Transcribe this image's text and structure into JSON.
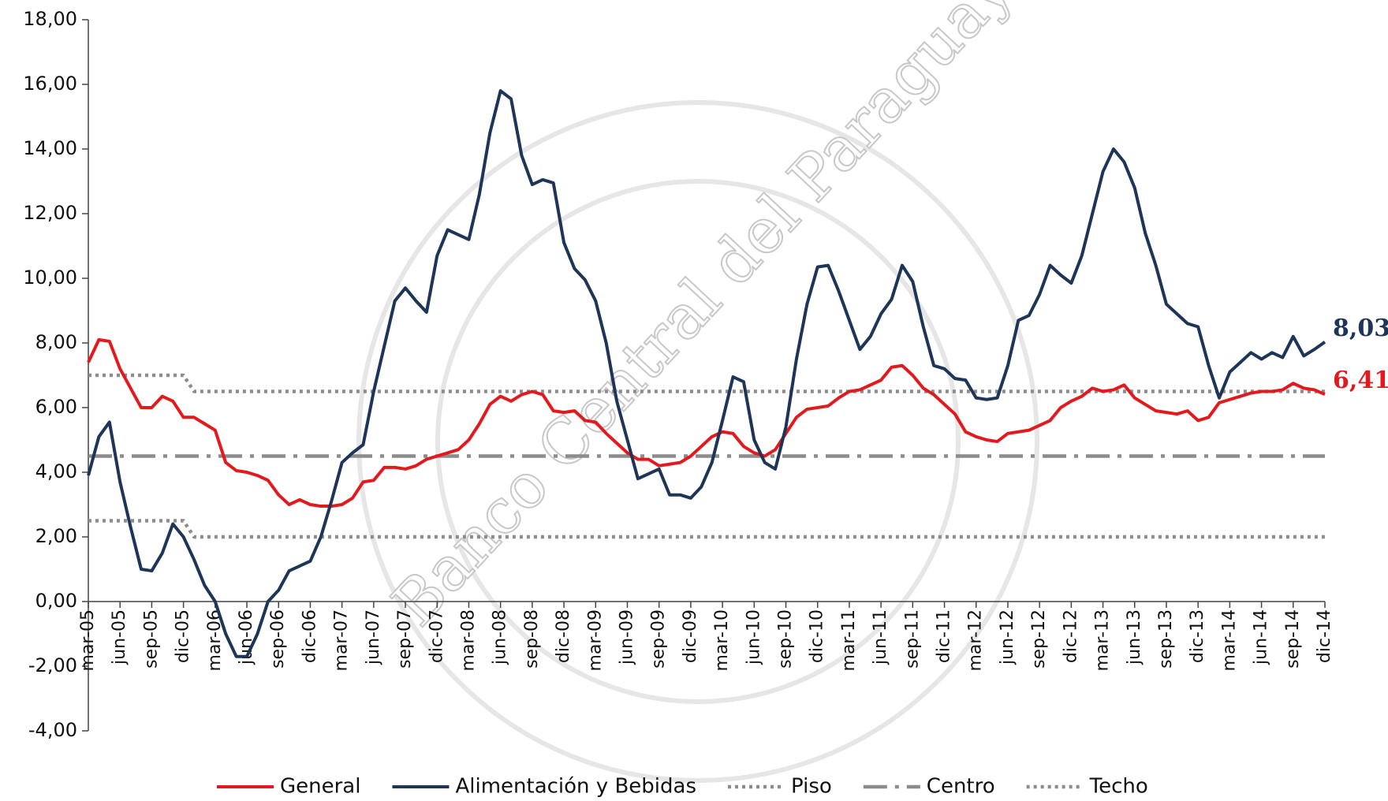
{
  "chart_data": {
    "type": "line",
    "watermark": "Banco Central del Paraguay",
    "categories": [
      "mar-05",
      null,
      null,
      "jun-05",
      null,
      null,
      "sep-05",
      null,
      null,
      "dic-05",
      null,
      null,
      "mar-06",
      null,
      null,
      "jun-06",
      null,
      null,
      "sep-06",
      null,
      null,
      "dic-06",
      null,
      null,
      "mar-07",
      null,
      null,
      "jun-07",
      null,
      null,
      "sep-07",
      null,
      null,
      "dic-07",
      null,
      null,
      "mar-08",
      null,
      null,
      "jun-08",
      null,
      null,
      "sep-08",
      null,
      null,
      "dic-08",
      null,
      null,
      "mar-09",
      null,
      null,
      "jun-09",
      null,
      null,
      "sep-09",
      null,
      null,
      "dic-09",
      null,
      null,
      "mar-10",
      null,
      null,
      "jun-10",
      null,
      null,
      "sep-10",
      null,
      null,
      "dic-10",
      null,
      null,
      "mar-11",
      null,
      null,
      "jun-11",
      null,
      null,
      "sep-11",
      null,
      null,
      "dic-11",
      null,
      null,
      "mar-12",
      null,
      null,
      "jun-12",
      null,
      null,
      "sep-12",
      null,
      null,
      "dic-12",
      null,
      null,
      "mar-13",
      null,
      null,
      "jun-13",
      null,
      null,
      "sep-13",
      null,
      null,
      "dic-13",
      null,
      null,
      "mar-14",
      null,
      null,
      "jun-14",
      null,
      null,
      "sep-14",
      null,
      null,
      "dic-14"
    ],
    "series": [
      {
        "name": "General",
        "color": "#e3191e",
        "style": "solid",
        "values": [
          7.4,
          8.1,
          8.05,
          7.2,
          6.6,
          6.0,
          6.0,
          6.35,
          6.2,
          5.7,
          5.7,
          5.5,
          5.3,
          4.3,
          4.05,
          4.0,
          3.9,
          3.75,
          3.3,
          3.0,
          3.15,
          3.0,
          2.95,
          2.95,
          3.0,
          3.2,
          3.7,
          3.75,
          4.15,
          4.15,
          4.1,
          4.2,
          4.4,
          4.5,
          4.6,
          4.7,
          5.0,
          5.5,
          6.1,
          6.35,
          6.2,
          6.4,
          6.5,
          6.4,
          5.9,
          5.85,
          5.9,
          5.6,
          5.55,
          5.2,
          4.9,
          4.6,
          4.4,
          4.4,
          4.2,
          4.25,
          4.3,
          4.5,
          4.8,
          5.1,
          5.25,
          5.2,
          4.8,
          4.6,
          4.5,
          4.7,
          5.2,
          5.7,
          5.95,
          6.0,
          6.05,
          6.3,
          6.5,
          6.55,
          6.7,
          6.85,
          7.25,
          7.3,
          7.0,
          6.6,
          6.4,
          6.1,
          5.8,
          5.25,
          5.1,
          5.0,
          4.95,
          5.2,
          5.25,
          5.3,
          5.45,
          5.6,
          6.0,
          6.2,
          6.35,
          6.6,
          6.5,
          6.55,
          6.7,
          6.3,
          6.1,
          5.9,
          5.85,
          5.8,
          5.9,
          5.6,
          5.7,
          6.15,
          6.25,
          6.35,
          6.45,
          6.5,
          6.5,
          6.55,
          6.75,
          6.6,
          6.55,
          6.41
        ],
        "value_labels": [
          null,
          null,
          null,
          null,
          null,
          null,
          null,
          null,
          null,
          null,
          null,
          null,
          null,
          null,
          null,
          null,
          null,
          null,
          null,
          null,
          null,
          null,
          null,
          null,
          null,
          null,
          null,
          null,
          null,
          null,
          null,
          null,
          null,
          null,
          null,
          null,
          null,
          null,
          null,
          null,
          null,
          null,
          null,
          null,
          null,
          null,
          null,
          null,
          null,
          null,
          null,
          null,
          null,
          null,
          null,
          null,
          null,
          null,
          null,
          null,
          null,
          null,
          null,
          null,
          null,
          null,
          null,
          null,
          null,
          null,
          null,
          null,
          null,
          null,
          null,
          null,
          null,
          null,
          null,
          null,
          null,
          null,
          null,
          null,
          null,
          null,
          null,
          null,
          null,
          null,
          null,
          null,
          null,
          null,
          null,
          null,
          null,
          null,
          null,
          null,
          null,
          null,
          null,
          null,
          null,
          null,
          null,
          null,
          null,
          null,
          null,
          null,
          null,
          null,
          null,
          null,
          null,
          "6,41"
        ]
      },
      {
        "name": "Alimentación y Bebidas",
        "color": "#1d3557",
        "style": "solid",
        "values": [
          3.9,
          5.1,
          5.55,
          3.7,
          2.3,
          1.0,
          0.95,
          1.5,
          2.4,
          2.0,
          1.3,
          0.5,
          0.0,
          -1.0,
          -1.7,
          -1.7,
          -1.0,
          0.0,
          0.35,
          0.95,
          1.1,
          1.25,
          2.0,
          3.1,
          4.3,
          4.6,
          4.85,
          6.5,
          7.9,
          9.3,
          9.7,
          9.3,
          8.95,
          10.7,
          11.5,
          11.35,
          11.2,
          12.6,
          14.5,
          15.8,
          15.55,
          13.8,
          12.9,
          13.05,
          12.95,
          11.1,
          10.3,
          9.95,
          9.3,
          8.0,
          6.2,
          5.0,
          3.8,
          3.95,
          4.1,
          3.3,
          3.3,
          3.2,
          3.55,
          4.3,
          5.6,
          6.95,
          6.8,
          5.0,
          4.3,
          4.1,
          5.4,
          7.5,
          9.2,
          10.35,
          10.4,
          9.6,
          8.7,
          7.8,
          8.2,
          8.9,
          9.35,
          10.4,
          9.9,
          8.5,
          7.3,
          7.2,
          6.9,
          6.85,
          6.3,
          6.25,
          6.3,
          7.3,
          8.7,
          8.85,
          9.5,
          10.4,
          10.1,
          9.85,
          10.7,
          12.0,
          13.3,
          14.0,
          13.6,
          12.8,
          11.4,
          10.4,
          9.2,
          8.9,
          8.6,
          8.5,
          7.3,
          6.3,
          7.1,
          7.4,
          7.7,
          7.5,
          7.7,
          7.55,
          8.2,
          7.6,
          7.8,
          8.03
        ],
        "value_labels": [
          null,
          null,
          null,
          null,
          null,
          null,
          null,
          null,
          null,
          null,
          null,
          null,
          null,
          null,
          null,
          null,
          null,
          null,
          null,
          null,
          null,
          null,
          null,
          null,
          null,
          null,
          null,
          null,
          null,
          null,
          null,
          null,
          null,
          null,
          null,
          null,
          null,
          null,
          null,
          null,
          null,
          null,
          null,
          null,
          null,
          null,
          null,
          null,
          null,
          null,
          null,
          null,
          null,
          null,
          null,
          null,
          null,
          null,
          null,
          null,
          null,
          null,
          null,
          null,
          null,
          null,
          null,
          null,
          null,
          null,
          null,
          null,
          null,
          null,
          null,
          null,
          null,
          null,
          null,
          null,
          null,
          null,
          null,
          null,
          null,
          null,
          null,
          null,
          null,
          null,
          null,
          null,
          null,
          null,
          null,
          null,
          null,
          null,
          null,
          null,
          null,
          null,
          null,
          null,
          null,
          null,
          null,
          null,
          null,
          null,
          null,
          null,
          null,
          null,
          null,
          null,
          null,
          "8,03"
        ]
      },
      {
        "name": "Piso",
        "color": "#8c8c8c",
        "style": "dotted",
        "values": [
          2.5,
          2.5,
          2.5,
          2.5,
          2.5,
          2.5,
          2.5,
          2.5,
          2.5,
          2.5,
          2,
          2,
          2,
          2,
          2,
          2,
          2,
          2,
          2,
          2,
          2,
          2,
          2,
          2,
          2,
          2,
          2,
          2,
          2,
          2,
          2,
          2,
          2,
          2,
          2,
          2,
          2,
          2,
          2,
          2,
          2,
          2,
          2,
          2,
          2,
          2,
          2,
          2,
          2,
          2,
          2,
          2,
          2,
          2,
          2,
          2,
          2,
          2,
          2,
          2,
          2,
          2,
          2,
          2,
          2,
          2,
          2,
          2,
          2,
          2,
          2,
          2,
          2,
          2,
          2,
          2,
          2,
          2,
          2,
          2,
          2,
          2,
          2,
          2,
          2,
          2,
          2,
          2,
          2,
          2,
          2,
          2,
          2,
          2,
          2,
          2,
          2,
          2,
          2,
          2,
          2,
          2,
          2,
          2,
          2,
          2,
          2,
          2,
          2,
          2,
          2,
          2,
          2,
          2,
          2,
          2,
          2,
          2
        ]
      },
      {
        "name": "Centro",
        "color": "#8c8c8c",
        "style": "dashdot",
        "values": [
          4.5,
          4.5,
          4.5,
          4.5,
          4.5,
          4.5,
          4.5,
          4.5,
          4.5,
          4.5,
          4.5,
          4.5,
          4.5,
          4.5,
          4.5,
          4.5,
          4.5,
          4.5,
          4.5,
          4.5,
          4.5,
          4.5,
          4.5,
          4.5,
          4.5,
          4.5,
          4.5,
          4.5,
          4.5,
          4.5,
          4.5,
          4.5,
          4.5,
          4.5,
          4.5,
          4.5,
          4.5,
          4.5,
          4.5,
          4.5,
          4.5,
          4.5,
          4.5,
          4.5,
          4.5,
          4.5,
          4.5,
          4.5,
          4.5,
          4.5,
          4.5,
          4.5,
          4.5,
          4.5,
          4.5,
          4.5,
          4.5,
          4.5,
          4.5,
          4.5,
          4.5,
          4.5,
          4.5,
          4.5,
          4.5,
          4.5,
          4.5,
          4.5,
          4.5,
          4.5,
          4.5,
          4.5,
          4.5,
          4.5,
          4.5,
          4.5,
          4.5,
          4.5,
          4.5,
          4.5,
          4.5,
          4.5,
          4.5,
          4.5,
          4.5,
          4.5,
          4.5,
          4.5,
          4.5,
          4.5,
          4.5,
          4.5,
          4.5,
          4.5,
          4.5,
          4.5,
          4.5,
          4.5,
          4.5,
          4.5,
          4.5,
          4.5,
          4.5,
          4.5,
          4.5,
          4.5,
          4.5,
          4.5,
          4.5,
          4.5,
          4.5,
          4.5,
          4.5,
          4.5,
          4.5,
          4.5,
          4.5,
          4.5
        ]
      },
      {
        "name": "Techo",
        "color": "#8c8c8c",
        "style": "dotted",
        "values": [
          7,
          7,
          7,
          7,
          7,
          7,
          7,
          7,
          7,
          7,
          6.5,
          6.5,
          6.5,
          6.5,
          6.5,
          6.5,
          6.5,
          6.5,
          6.5,
          6.5,
          6.5,
          6.5,
          6.5,
          6.5,
          6.5,
          6.5,
          6.5,
          6.5,
          6.5,
          6.5,
          6.5,
          6.5,
          6.5,
          6.5,
          6.5,
          6.5,
          6.5,
          6.5,
          6.5,
          6.5,
          6.5,
          6.5,
          6.5,
          6.5,
          6.5,
          6.5,
          6.5,
          6.5,
          6.5,
          6.5,
          6.5,
          6.5,
          6.5,
          6.5,
          6.5,
          6.5,
          6.5,
          6.5,
          6.5,
          6.5,
          6.5,
          6.5,
          6.5,
          6.5,
          6.5,
          6.5,
          6.5,
          6.5,
          6.5,
          6.5,
          6.5,
          6.5,
          6.5,
          6.5,
          6.5,
          6.5,
          6.5,
          6.5,
          6.5,
          6.5,
          6.5,
          6.5,
          6.5,
          6.5,
          6.5,
          6.5,
          6.5,
          6.5,
          6.5,
          6.5,
          6.5,
          6.5,
          6.5,
          6.5,
          6.5,
          6.5,
          6.5,
          6.5,
          6.5,
          6.5,
          6.5,
          6.5,
          6.5,
          6.5,
          6.5,
          6.5,
          6.5,
          6.5,
          6.5,
          6.5,
          6.5,
          6.5,
          6.5,
          6.5,
          6.5,
          6.5,
          6.5,
          6.5
        ]
      }
    ],
    "ylim": [
      -4,
      18
    ],
    "yticks": [
      {
        "value": -4,
        "label": "-4,00"
      },
      {
        "value": -2,
        "label": "-2,00"
      },
      {
        "value": 0,
        "label": "0,00"
      },
      {
        "value": 2,
        "label": "2,00"
      },
      {
        "value": 4,
        "label": "4,00"
      },
      {
        "value": 6,
        "label": "6,00"
      },
      {
        "value": 8,
        "label": "8,00"
      },
      {
        "value": 10,
        "label": "10,00"
      },
      {
        "value": 12,
        "label": "12,00"
      },
      {
        "value": 14,
        "label": "14,00"
      },
      {
        "value": 16,
        "label": "16,00"
      },
      {
        "value": 18,
        "label": "18,00"
      }
    ],
    "grid": false,
    "legend": "bottom"
  }
}
